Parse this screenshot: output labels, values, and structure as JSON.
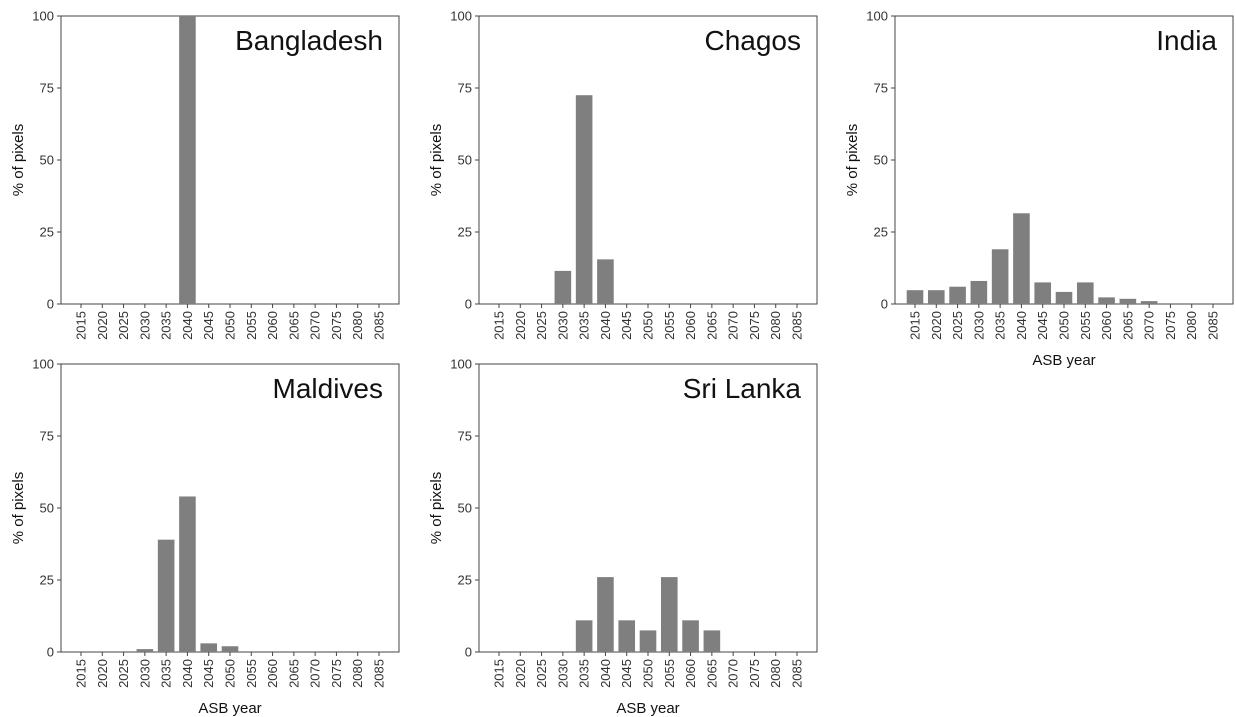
{
  "chart_data": [
    {
      "type": "bar",
      "title": "Bangladesh",
      "ylabel": "% of pixels",
      "xlabel": "",
      "categories": [
        "2015",
        "2020",
        "2025",
        "2030",
        "2035",
        "2040",
        "2045",
        "2050",
        "2055",
        "2060",
        "2065",
        "2070",
        "2075",
        "2080",
        "2085"
      ],
      "values": [
        0,
        0,
        0,
        0,
        0,
        100,
        0,
        0,
        0,
        0,
        0,
        0,
        0,
        0,
        0
      ],
      "ylim": [
        0,
        100
      ],
      "yticks": [
        "0",
        "25",
        "50",
        "75",
        "100"
      ],
      "bar_color": "#7f7f7f"
    },
    {
      "type": "bar",
      "title": "Chagos",
      "ylabel": "% of pixels",
      "xlabel": "",
      "categories": [
        "2015",
        "2020",
        "2025",
        "2030",
        "2035",
        "2040",
        "2045",
        "2050",
        "2055",
        "2060",
        "2065",
        "2070",
        "2075",
        "2080",
        "2085"
      ],
      "values": [
        0,
        0,
        0,
        11.5,
        72.5,
        15.5,
        0,
        0,
        0,
        0,
        0,
        0,
        0,
        0,
        0
      ],
      "ylim": [
        0,
        100
      ],
      "yticks": [
        "0",
        "25",
        "50",
        "75",
        "100"
      ],
      "bar_color": "#7f7f7f"
    },
    {
      "type": "bar",
      "title": "India",
      "ylabel": "% of pixels",
      "xlabel": "ASB year",
      "categories": [
        "2015",
        "2020",
        "2025",
        "2030",
        "2035",
        "2040",
        "2045",
        "2050",
        "2055",
        "2060",
        "2065",
        "2070",
        "2075",
        "2080",
        "2085"
      ],
      "values": [
        4.8,
        4.8,
        6,
        8,
        19,
        31.5,
        7.5,
        4.2,
        7.5,
        2.3,
        1.8,
        1,
        0,
        0,
        0
      ],
      "ylim": [
        0,
        100
      ],
      "yticks": [
        "0",
        "25",
        "50",
        "75",
        "100"
      ],
      "bar_color": "#7f7f7f"
    },
    {
      "type": "bar",
      "title": "Maldives",
      "ylabel": "% of pixels",
      "xlabel": "ASB year",
      "categories": [
        "2015",
        "2020",
        "2025",
        "2030",
        "2035",
        "2040",
        "2045",
        "2050",
        "2055",
        "2060",
        "2065",
        "2070",
        "2075",
        "2080",
        "2085"
      ],
      "values": [
        0,
        0,
        0,
        1,
        39,
        54,
        3,
        2,
        0,
        0,
        0,
        0,
        0,
        0,
        0
      ],
      "ylim": [
        0,
        100
      ],
      "yticks": [
        "0",
        "25",
        "50",
        "75",
        "100"
      ],
      "bar_color": "#7f7f7f"
    },
    {
      "type": "bar",
      "title": "Sri Lanka",
      "ylabel": "% of pixels",
      "xlabel": "ASB year",
      "categories": [
        "2015",
        "2020",
        "2025",
        "2030",
        "2035",
        "2040",
        "2045",
        "2050",
        "2055",
        "2060",
        "2065",
        "2070",
        "2075",
        "2080",
        "2085"
      ],
      "values": [
        0,
        0,
        0,
        0,
        11,
        26,
        11,
        7.5,
        26,
        11,
        7.5,
        0,
        0,
        0,
        0
      ],
      "ylim": [
        0,
        100
      ],
      "yticks": [
        "0",
        "25",
        "50",
        "75",
        "100"
      ],
      "bar_color": "#7f7f7f"
    }
  ]
}
